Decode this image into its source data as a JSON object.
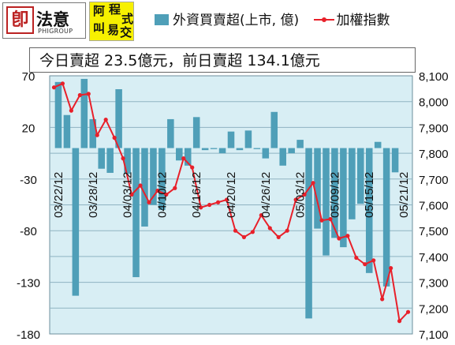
{
  "logos": {
    "fayi_seal": "卽",
    "fayi_name": "法意",
    "fayi_sub": "PHIGROUP",
    "tag_chars": [
      "阿",
      "程",
      "式",
      "叫",
      "易",
      "交"
    ]
  },
  "legend": {
    "bar_label": "外資買賣超(上市, 億)",
    "line_label": "加權指數"
  },
  "summary_text": "今日賣超 23.5億元，前日賣超 134.1億元",
  "colors": {
    "bar": "#4f9fb8",
    "line": "#e8202a",
    "plot_bg": "#d8eef4",
    "grid": "#8fb3c2"
  },
  "chart_data": {
    "type": "bar",
    "title": "",
    "x_tick_labels": [
      "03/22/12",
      "03/28/12",
      "04/03/12",
      "04/10/12",
      "04/16/12",
      "04/20/12",
      "04/26/12",
      "05/03/12",
      "05/09/12",
      "05/15/12",
      "05/21/12"
    ],
    "x_tick_positions": [
      1,
      5,
      9,
      13,
      17,
      21,
      25,
      29,
      33,
      37,
      41
    ],
    "left_axis": {
      "ylim": [
        -180,
        70
      ],
      "ticks": [
        70,
        20,
        -30,
        -80,
        -130,
        -180
      ]
    },
    "right_axis": {
      "ylim": [
        7100,
        8100
      ],
      "ticks": [
        8100,
        8000,
        7900,
        7800,
        7700,
        7600,
        7500,
        7400,
        7300,
        7200,
        7100
      ],
      "tick_labels": [
        "8,100",
        "8,000",
        "7,900",
        "7,800",
        "7,700",
        "7,600",
        "7,500",
        "7,400",
        "7,300",
        "7,200",
        "7,100"
      ]
    },
    "grid": "horizontal",
    "series": [
      {
        "name": "外資買賣超(上市, 億)",
        "type": "bar",
        "axis": "left",
        "values": [
          64,
          32,
          -143,
          67,
          28,
          -20,
          -24,
          57,
          -25,
          -125,
          -76,
          -55,
          -60,
          28,
          -12,
          -17,
          30,
          -2,
          -1,
          -5,
          16,
          -2,
          17,
          -1,
          -10,
          35,
          -17,
          -5,
          8,
          -165,
          -78,
          -104,
          -87,
          -96,
          -69,
          -54,
          -121,
          6,
          -134,
          -23.5
        ],
        "x": [
          1,
          2,
          3,
          4,
          5,
          6,
          7,
          8,
          9,
          10,
          11,
          12,
          13,
          14,
          15,
          16,
          17,
          18,
          19,
          20,
          21,
          22,
          23,
          24,
          25,
          26,
          27,
          28,
          29,
          30,
          31,
          32,
          33,
          34,
          35,
          36,
          37,
          38,
          39,
          40
        ]
      },
      {
        "name": "加權指數",
        "type": "line",
        "axis": "right",
        "values": [
          8055,
          8070,
          7965,
          8025,
          8030,
          7870,
          7930,
          7860,
          7780,
          7640,
          7675,
          7610,
          7655,
          7640,
          7665,
          7780,
          7745,
          7590,
          7600,
          7610,
          7620,
          7500,
          7475,
          7495,
          7560,
          7510,
          7475,
          7500,
          7620,
          7640,
          7685,
          7540,
          7545,
          7470,
          7480,
          7395,
          7370,
          7385,
          7235,
          7355,
          7150,
          7185
        ],
        "x": [
          0.5,
          1.5,
          2.5,
          3.5,
          4.5,
          5.5,
          6.5,
          7.5,
          8.5,
          9.5,
          10.5,
          11.5,
          12.5,
          13.5,
          14.5,
          15.5,
          16.5,
          17.5,
          18.5,
          19.5,
          20.5,
          21.5,
          22.5,
          23.5,
          24.5,
          25.5,
          26.5,
          27.5,
          28.5,
          29.5,
          30.5,
          31.5,
          32.5,
          33.5,
          34.5,
          35.5,
          36.5,
          37.5,
          38.5,
          39.5,
          40.5,
          41.5
        ]
      }
    ]
  }
}
